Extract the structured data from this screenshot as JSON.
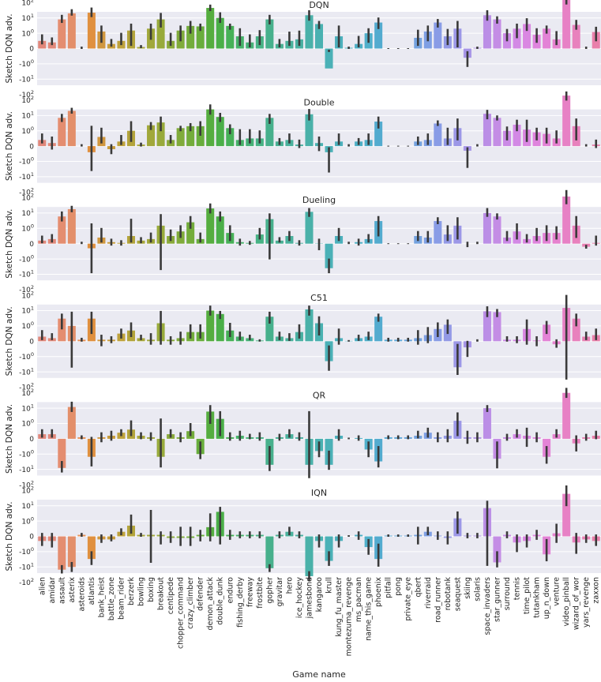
{
  "chart_data": {
    "type": "bar",
    "xlabel": "Game name",
    "ylabel": "Sketch DQN adv.",
    "yscale": "symlog",
    "yticks": [
      "-10^2",
      "-10^1",
      "-10^0",
      "0",
      "10^0",
      "10^1",
      "10^2"
    ],
    "categories": [
      "alien",
      "amidar",
      "assault",
      "asterix",
      "asteroids",
      "atlantis",
      "bank_heist",
      "battle_zone",
      "beam_rider",
      "berzerk",
      "bowling",
      "boxing",
      "breakout",
      "centipede",
      "chopper_command",
      "crazy_climber",
      "defender",
      "demon_attack",
      "double_dunk",
      "enduro",
      "fishing_derby",
      "freeway",
      "frostbite",
      "gopher",
      "gravitar",
      "hero",
      "ice_hockey",
      "jamesbond",
      "kangaroo",
      "krull",
      "kung_fu_master",
      "montezuma_revenge",
      "ms_pacman",
      "name_this_game",
      "phoenix",
      "pitfall",
      "pong",
      "private_eye",
      "qbert",
      "riverraid",
      "road_runner",
      "robotank",
      "seaquest",
      "skiing",
      "solaris",
      "space_invaders",
      "star_gunner",
      "surround",
      "tennis",
      "time_pilot",
      "tutankham",
      "up_n_down",
      "venture",
      "video_pinball",
      "wizard_of_wor",
      "yars_revenge",
      "zaxxon"
    ],
    "colors": [
      "#e1877a",
      "#e1897a",
      "#e48d70",
      "#e38f6a",
      "#e59056",
      "#e0903f",
      "#d0973f",
      "#c89d3c",
      "#bfa23c",
      "#b3a43b",
      "#a8a73b",
      "#a1a83b",
      "#98aa3b",
      "#8aaa3b",
      "#80ab3b",
      "#73ac3b",
      "#68ad3c",
      "#55ad3f",
      "#4aaf48",
      "#46b157",
      "#46b269",
      "#46b277",
      "#47b385",
      "#47b08c",
      "#48b094",
      "#49b19c",
      "#49b0a2",
      "#4ab1a9",
      "#4ab1b1",
      "#4bb1b7",
      "#4bb0bc",
      "#4cb0c1",
      "#4db0c6",
      "#4fafca",
      "#53abcf",
      "#5cabd6",
      "#62a8d9",
      "#6aa4dc",
      "#74a2df",
      "#7e9fe4",
      "#899ce6",
      "#9399e6",
      "#9c97e7",
      "#a795e7",
      "#b293e6",
      "#bb8ee6",
      "#c48de5",
      "#cb8ae6",
      "#d389e5",
      "#da87e2",
      "#df84dd",
      "#e383d6",
      "#e682cf",
      "#e781c5",
      "#e881bd",
      "#e880b3",
      "#e97faa"
    ],
    "series": [
      {
        "name": "DQN",
        "values": [
          0.5,
          0.4,
          8,
          20,
          0,
          22,
          1.3,
          0.3,
          0.5,
          1.5,
          0.1,
          2,
          8,
          0.5,
          1.5,
          3,
          2.8,
          45,
          10,
          3,
          0.8,
          0.4,
          0.8,
          8,
          0.3,
          0.5,
          0.6,
          15,
          4,
          -2,
          0.8,
          0.05,
          0.3,
          1,
          5,
          0,
          0,
          0,
          0.7,
          1.3,
          5,
          0.8,
          2,
          -0.6,
          0.05,
          15,
          8,
          1,
          2,
          4,
          0.9,
          2,
          0.6,
          250,
          3.5,
          0,
          1.2
        ],
        "err_low": [
          0.3,
          0.25,
          5,
          15,
          0,
          12,
          0.4,
          0.15,
          0.25,
          0.2,
          0.05,
          0.6,
          2.5,
          0.2,
          0.5,
          1,
          1.5,
          30,
          5,
          1.8,
          0.2,
          0.1,
          0.25,
          4,
          0.1,
          0.2,
          0.2,
          7,
          2,
          -0.2,
          0.1,
          0,
          0.1,
          0.4,
          2,
          0,
          0,
          0,
          0.2,
          0.5,
          2.5,
          0.25,
          0.1,
          -0.2,
          0,
          7,
          4.5,
          0.5,
          0.7,
          1.5,
          0.4,
          1,
          0.25,
          80,
          1.8,
          0,
          0.5
        ],
        "err_high": [
          0.9,
          0.7,
          15,
          35,
          0.1,
          45,
          3,
          0.6,
          1,
          4,
          0.2,
          4,
          20,
          1,
          3,
          6,
          4,
          70,
          22,
          4,
          2,
          0.9,
          1.5,
          15,
          0.6,
          1.2,
          1.4,
          30,
          6,
          -0.1,
          3,
          0.1,
          0.8,
          2,
          10,
          0,
          0,
          0,
          1.6,
          3,
          8,
          1.8,
          6,
          -1.5,
          0.1,
          30,
          12,
          1.8,
          4,
          9,
          2,
          3,
          1.3,
          600,
          7,
          0.1,
          2.5
        ]
      },
      {
        "name": "Double",
        "values": [
          0.4,
          0.2,
          7,
          20,
          0,
          -0.4,
          0.6,
          -0.2,
          0.3,
          1,
          0.1,
          2.3,
          3.5,
          0.4,
          1.5,
          2,
          2,
          25,
          8,
          1.5,
          0.4,
          0.5,
          0.5,
          7,
          0.3,
          0.4,
          0.1,
          12,
          0.2,
          -0.4,
          0.3,
          0,
          0.3,
          0.4,
          4,
          0,
          0,
          0,
          0.3,
          0.4,
          3,
          0.5,
          1.5,
          -0.3,
          0,
          13,
          7,
          1,
          2.5,
          1.2,
          0.9,
          0.8,
          0.5,
          200,
          2,
          0,
          0.1
        ],
        "err_low": [
          0.2,
          -0.2,
          4,
          14,
          0,
          -4,
          0.2,
          -0.5,
          0.1,
          0.3,
          0,
          1.2,
          1,
          0.2,
          1,
          1,
          0.7,
          12,
          4,
          0.8,
          0.1,
          0.2,
          0.2,
          3,
          0.1,
          0.2,
          -0.1,
          5,
          -0.3,
          -5,
          0.1,
          0,
          0.1,
          0.1,
          1.5,
          0,
          0,
          0,
          0.1,
          0.1,
          2.2,
          0.1,
          0.4,
          -2.5,
          0,
          6,
          5,
          0.4,
          1,
          0.3,
          0.4,
          0.2,
          0.2,
          100,
          0.4,
          0,
          -0.1
        ],
        "err_high": [
          0.8,
          0.6,
          12,
          30,
          0.1,
          2,
          1.5,
          0.1,
          0.7,
          4,
          0.2,
          3.5,
          8,
          0.7,
          2,
          3,
          4,
          50,
          14,
          2.5,
          1.2,
          1.2,
          1,
          12,
          0.5,
          0.8,
          0.4,
          25,
          0.6,
          -0.1,
          0.8,
          0.1,
          0.5,
          0.8,
          8,
          0,
          0,
          0,
          0.6,
          0.8,
          4.5,
          1.5,
          6,
          -0.1,
          0.1,
          22,
          9.5,
          1.8,
          5,
          5,
          1.5,
          1.5,
          1,
          350,
          6,
          0.1,
          0.4
        ]
      },
      {
        "name": "Dueling",
        "values": [
          0.2,
          0.3,
          6,
          18,
          0,
          -0.3,
          0.4,
          0.1,
          0.05,
          0.5,
          0.2,
          0.3,
          1.5,
          0.5,
          0.8,
          2.5,
          0.3,
          20,
          6,
          0.7,
          0.1,
          0.05,
          0.6,
          4,
          0.2,
          0.5,
          0.05,
          12,
          0.02,
          -4,
          0.5,
          0,
          0.1,
          0.3,
          3,
          0,
          0,
          0,
          0.5,
          0.4,
          3,
          0.6,
          1.5,
          0,
          0,
          10,
          6,
          0.4,
          0.8,
          0.3,
          0.5,
          0.7,
          0.7,
          120,
          1.5,
          -0.2,
          0.05
        ],
        "err_low": [
          0.05,
          0.1,
          3,
          12,
          0,
          -8,
          0.1,
          -0.1,
          -0.1,
          0.1,
          0.05,
          0.1,
          -5,
          0.2,
          0.4,
          1,
          0.1,
          10,
          3,
          0.2,
          -0.1,
          -0.05,
          0.3,
          -1,
          0.1,
          0.2,
          -0.1,
          6,
          -0.4,
          -8,
          0.2,
          0,
          -0.1,
          0.1,
          0.5,
          0,
          0,
          0,
          0.2,
          0.1,
          2,
          0.2,
          0.3,
          -0.2,
          0,
          6,
          4,
          0.2,
          0.3,
          0.1,
          0.2,
          0.2,
          0.3,
          40,
          0.4,
          -0.3,
          -0.1
        ],
        "err_high": [
          0.5,
          0.6,
          12,
          28,
          0.1,
          2,
          1,
          0.3,
          0.2,
          4,
          0.4,
          0.7,
          8,
          0.9,
          1.5,
          6,
          0.7,
          40,
          12,
          1.5,
          0.3,
          0.15,
          1,
          9,
          0.4,
          0.8,
          0.2,
          20,
          0.3,
          -1,
          1,
          0.1,
          0.3,
          0.6,
          6,
          0,
          0,
          0,
          0.8,
          0.8,
          5,
          1.5,
          5,
          0.1,
          0.1,
          20,
          9,
          0.8,
          2,
          0.6,
          1,
          1.5,
          1.3,
          300,
          6,
          -0.1,
          0.5
        ]
      },
      {
        "name": "C51",
        "values": [
          0.3,
          0.2,
          3,
          1,
          0.1,
          3,
          0.1,
          0.1,
          0.5,
          0.7,
          0.2,
          0.1,
          1.5,
          0.1,
          0.2,
          0.6,
          0.6,
          10,
          6,
          0.7,
          0.3,
          0.2,
          0.05,
          4,
          0.3,
          0.2,
          0.6,
          12,
          1.5,
          -2,
          0.2,
          0.02,
          0.2,
          0.3,
          4,
          0.1,
          0.1,
          0.1,
          0.2,
          0.4,
          0.8,
          1.2,
          -5,
          -0.4,
          0,
          9,
          8,
          0.1,
          0.1,
          0.8,
          0.05,
          1.2,
          -0.2,
          15,
          3,
          0.3,
          0.4
        ],
        "err_low": [
          0.1,
          0.1,
          0.8,
          -5,
          0,
          0.5,
          -0.3,
          -0.1,
          0.2,
          0.3,
          0.1,
          -0.2,
          -0.2,
          -0.2,
          -0.2,
          0.2,
          0.2,
          5,
          3,
          0.3,
          0.1,
          0.1,
          0,
          1.5,
          0.1,
          0.05,
          0.2,
          5,
          0.4,
          -8,
          -0.2,
          0,
          0.05,
          0.1,
          2,
          0,
          0,
          0,
          -0.2,
          -0.1,
          0.3,
          0.5,
          -15,
          -1,
          0,
          4,
          4,
          0,
          -0.1,
          -0.2,
          -0.3,
          0.5,
          -0.4,
          -30,
          1,
          0.1,
          0.1
        ],
        "err_high": [
          0.7,
          0.5,
          6,
          8,
          0.2,
          8,
          0.4,
          0.3,
          0.8,
          1.6,
          0.4,
          0.5,
          9,
          0.3,
          0.6,
          1.2,
          1.2,
          20,
          9,
          1.5,
          0.6,
          0.4,
          0.1,
          8,
          0.6,
          0.5,
          1.2,
          20,
          4,
          -0.3,
          0.8,
          0.05,
          0.4,
          0.6,
          6,
          0.2,
          0.2,
          0.2,
          0.7,
          0.9,
          1.6,
          2.5,
          -0.2,
          0,
          0.1,
          18,
          12,
          0.3,
          0.3,
          2.5,
          0.3,
          2,
          0.1,
          100,
          6,
          0.6,
          0.8
        ]
      },
      {
        "name": "QR",
        "values": [
          0.3,
          0.3,
          -8,
          12,
          0.1,
          -1.5,
          0.1,
          0.2,
          0.4,
          0.6,
          0.2,
          0.1,
          -1.5,
          0.3,
          0.1,
          0.5,
          -1,
          6,
          2,
          0.1,
          0.2,
          0.1,
          0.1,
          -5,
          0.1,
          0.3,
          0.1,
          -5,
          -0.8,
          -5,
          0.2,
          0,
          0.05,
          -0.7,
          -3,
          0.1,
          0.1,
          0.1,
          0.2,
          0.4,
          0.1,
          0.2,
          1.5,
          0.1,
          0.1,
          10,
          -2,
          0.1,
          0.3,
          0.2,
          0.1,
          -1.5,
          0.3,
          100,
          -0.3,
          0.1,
          0.2
        ],
        "err_low": [
          0.1,
          0.1,
          -15,
          6,
          0,
          -6,
          -0.2,
          -0.1,
          0.2,
          0.2,
          0,
          -0.1,
          -7,
          0.1,
          -0.2,
          0.2,
          -2,
          1,
          0.2,
          -0.1,
          -0.1,
          0,
          -0.1,
          -12,
          -0.1,
          0.1,
          -0.1,
          -35,
          -1.5,
          -10,
          -0.1,
          0,
          -0.1,
          -1.5,
          -7,
          0,
          0,
          0,
          0.05,
          0.1,
          -0.2,
          -0.2,
          0.2,
          -0.3,
          -0.2,
          6,
          -8,
          -0.1,
          0.1,
          -0.5,
          -0.2,
          -4,
          0.1,
          50,
          -0.8,
          -0.1,
          0
        ],
        "err_high": [
          0.6,
          0.6,
          -3,
          25,
          0.2,
          0.1,
          0.4,
          0.5,
          0.6,
          1.5,
          0.4,
          0.4,
          2,
          0.6,
          0.4,
          1,
          -0.2,
          15,
          6,
          0.4,
          0.5,
          0.3,
          0.4,
          -0.5,
          0.3,
          0.6,
          0.4,
          6,
          -0.2,
          -0.8,
          0.6,
          0.05,
          0.2,
          -0.2,
          -0.5,
          0.2,
          0.2,
          0.2,
          0.5,
          0.7,
          0.4,
          0.6,
          5,
          0.5,
          0.4,
          15,
          -0.2,
          0.3,
          0.6,
          0.7,
          0.4,
          -0.5,
          0.6,
          200,
          0.2,
          0.3,
          0.5
        ]
      },
      {
        "name": "IQN",
        "values": [
          -0.3,
          -0.3,
          -15,
          -10,
          0.1,
          -3,
          -0.2,
          -0.2,
          0.3,
          0.7,
          0.1,
          0.1,
          0.1,
          -0.1,
          -0.1,
          -0.1,
          0.1,
          0.6,
          4,
          0.1,
          0.1,
          0.1,
          0.1,
          -12,
          0.1,
          0.3,
          0.1,
          -40,
          -0.3,
          -4,
          -0.3,
          0,
          0.1,
          -0.7,
          -3,
          0.05,
          0.05,
          0.05,
          0.1,
          0.3,
          0.05,
          -0.1,
          1.5,
          0.05,
          0.05,
          7,
          -5,
          0.1,
          -0.4,
          -0.3,
          0.1,
          -1.5,
          0.2,
          60,
          -0.4,
          -0.2,
          -0.3
        ],
        "err_low": [
          -0.6,
          -0.7,
          -25,
          -20,
          0,
          -7,
          -0.4,
          -0.3,
          0.1,
          0.2,
          0,
          -5,
          -0.5,
          -0.4,
          -0.6,
          -0.6,
          -0.3,
          -0.3,
          -0.5,
          -0.2,
          -0.1,
          -0.1,
          -0.1,
          -20,
          -0.1,
          0.1,
          -0.1,
          -80,
          -0.7,
          -8,
          -0.7,
          0,
          -0.2,
          -1.5,
          -9,
          0,
          0,
          0,
          -0.5,
          0.1,
          -0.2,
          -0.5,
          0.2,
          -0.1,
          -0.1,
          -8,
          -10,
          -0.1,
          -1,
          -0.7,
          -0.2,
          -4,
          -0.4,
          10,
          -1.3,
          -0.4,
          -0.6
        ],
        "err_high": [
          0.2,
          0.2,
          -8,
          -5,
          0.2,
          -1,
          0.1,
          0.1,
          0.5,
          2.5,
          0.2,
          5,
          0.3,
          0.3,
          0.6,
          0.6,
          0.4,
          3,
          8,
          0.4,
          0.3,
          0.3,
          0.3,
          -7,
          0.3,
          0.6,
          0.3,
          -20,
          0.1,
          -1,
          0.1,
          0.05,
          0.3,
          -0.2,
          -0.5,
          0.1,
          0.1,
          0.1,
          0.6,
          0.6,
          0.3,
          0.3,
          4,
          0.2,
          0.2,
          20,
          -1,
          0.3,
          0.1,
          0.1,
          0.4,
          -0.2,
          0.8,
          200,
          0.2,
          0.1,
          0.1
        ]
      }
    ]
  }
}
